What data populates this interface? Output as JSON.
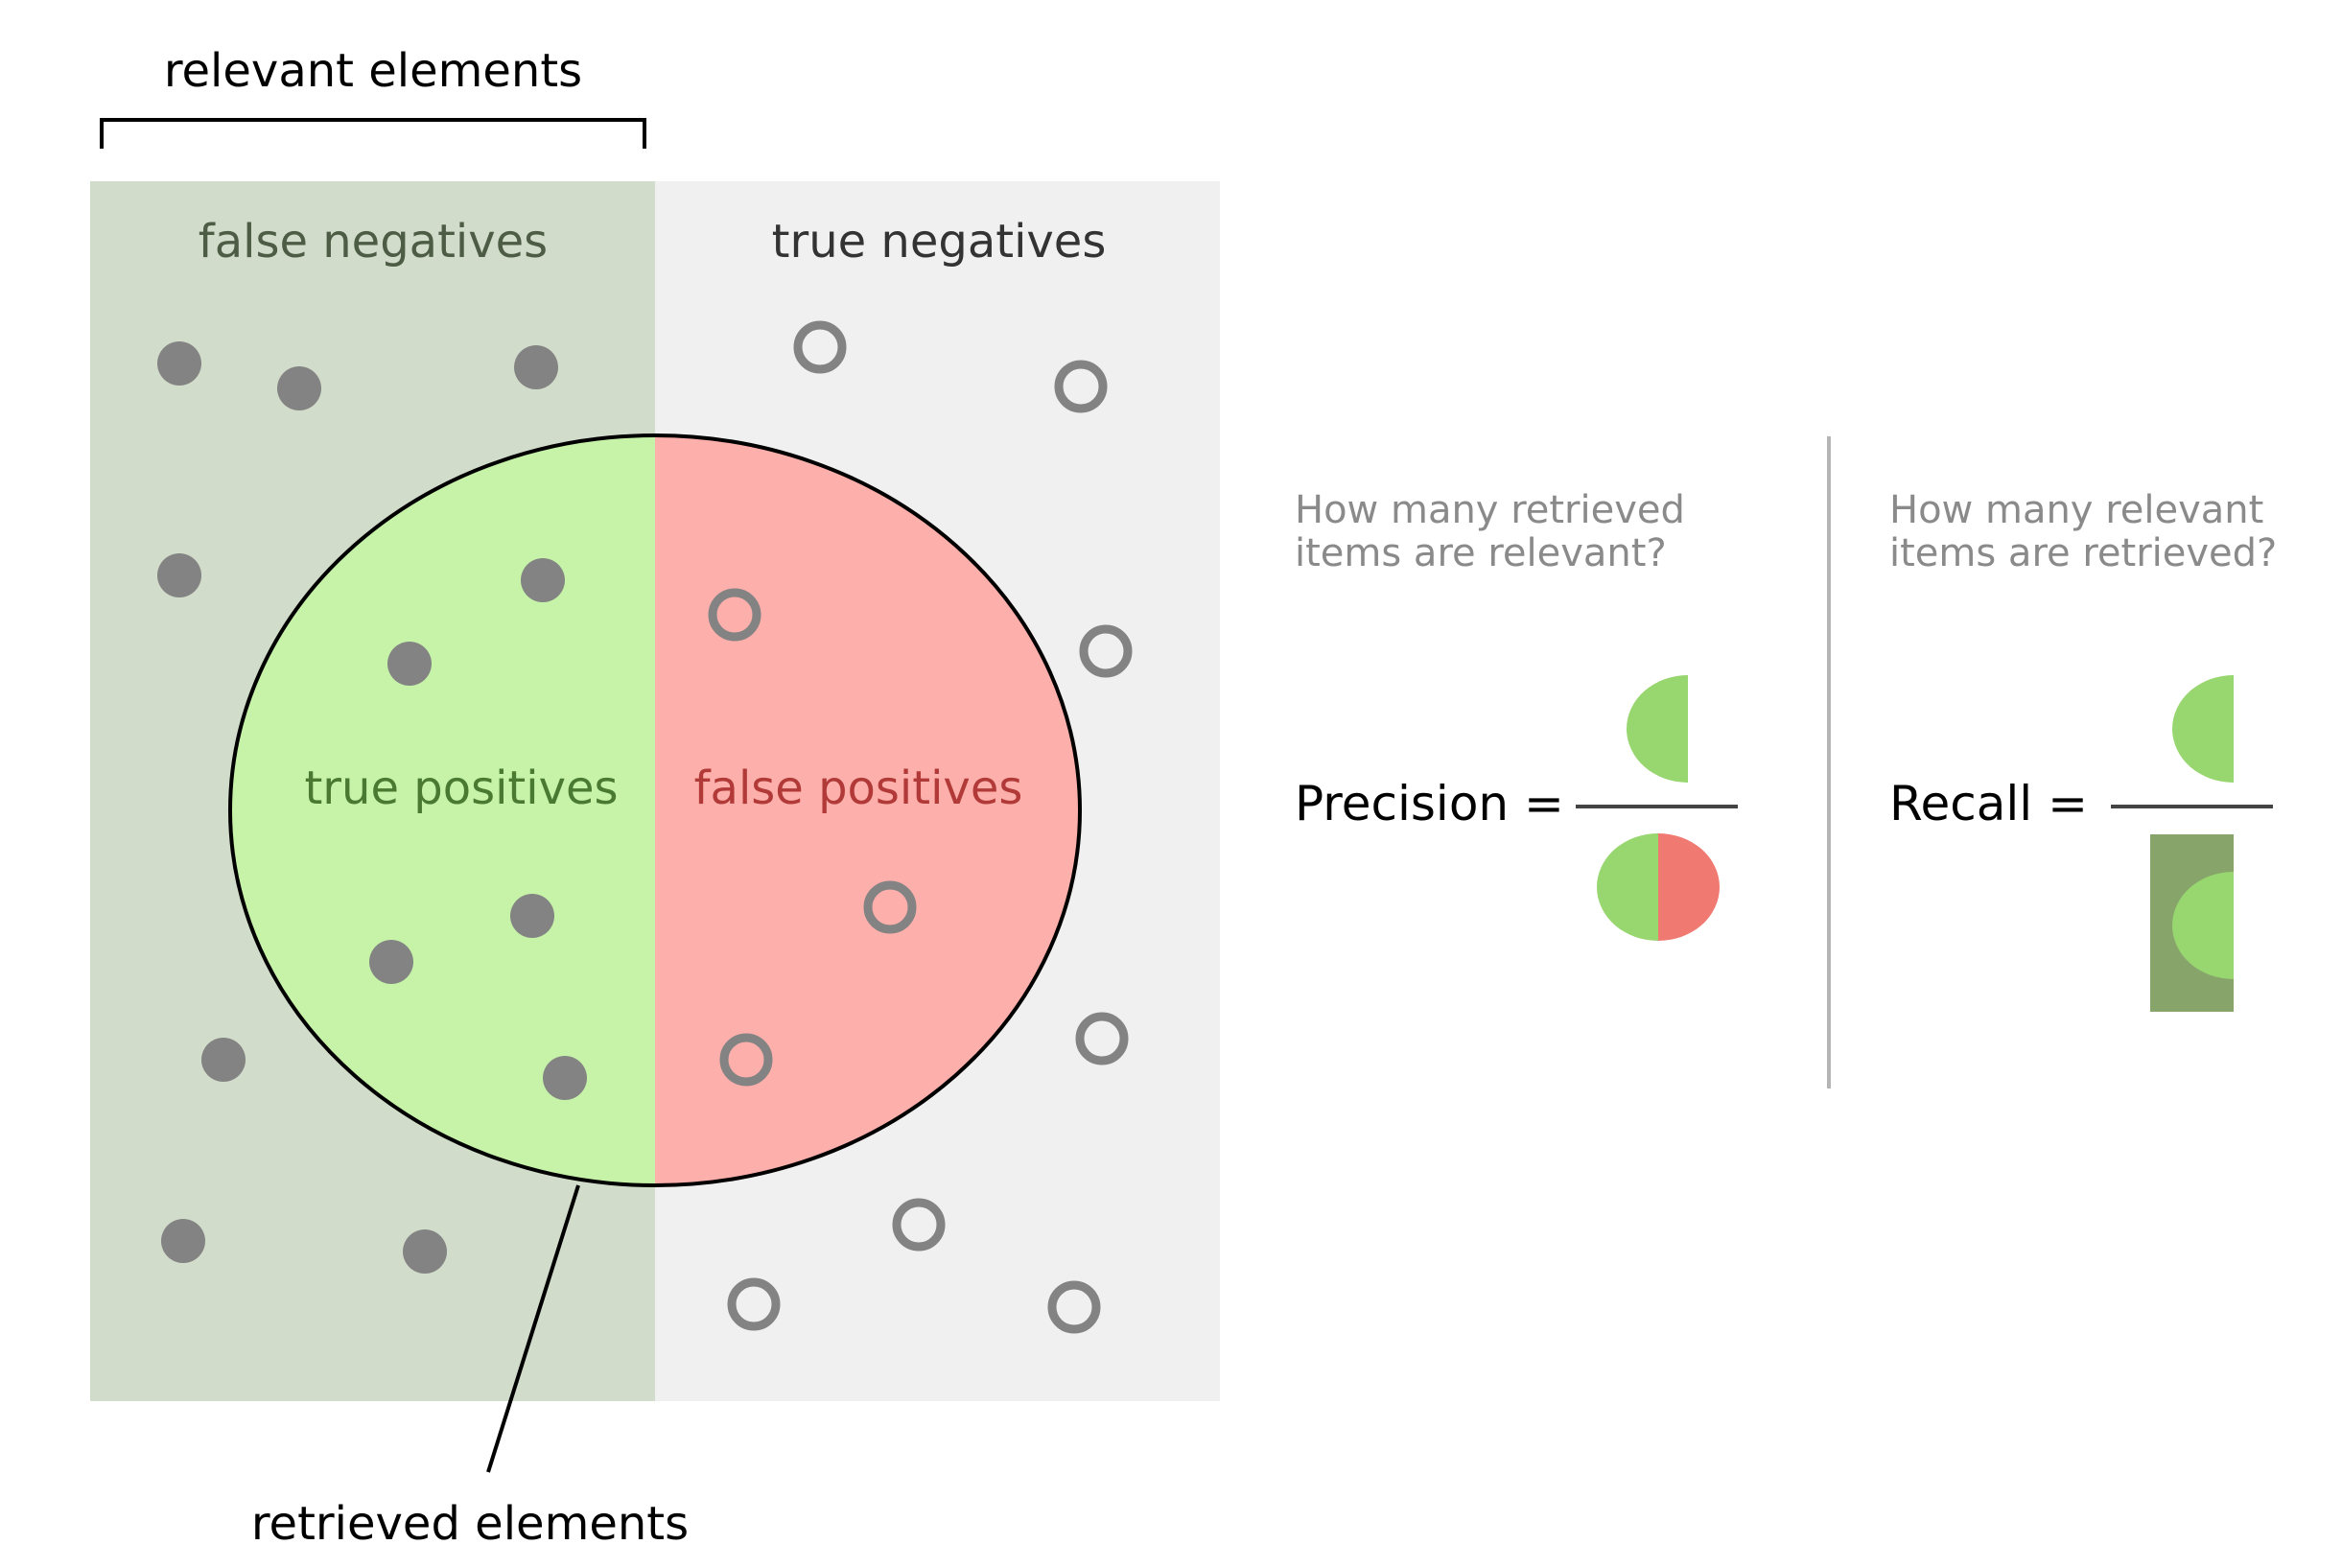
{
  "labels": {
    "relevant_elements": "relevant elements",
    "false_negatives": "false negatives",
    "true_negatives": "true negatives",
    "true_positives": "true positives",
    "false_positives": "false positives",
    "retrieved_elements": "retrieved elements"
  },
  "precision": {
    "question_line1": "How many retrieved",
    "question_line2": "items are relevant?",
    "label": "Precision ="
  },
  "recall": {
    "question_line1": "How many relevant",
    "question_line2": "items are retrieved?",
    "label": "Recall ="
  },
  "colors": {
    "relevant_region": "#d2dcca",
    "irrelevant_region": "#f0f0f0",
    "true_positive_fill": "#c6f3a8",
    "false_positive_fill": "#fdb0ab",
    "dot": "#838383",
    "green_half": "#98d66f",
    "red_half": "#f07a72",
    "recall_box": "#87a56b",
    "fn_text": "#4d5c45",
    "tn_text": "#333333",
    "tp_text": "#4a7a32",
    "fp_text": "#b13a38",
    "question_text": "#8a8a8a",
    "divider": "#b5b5b5"
  }
}
